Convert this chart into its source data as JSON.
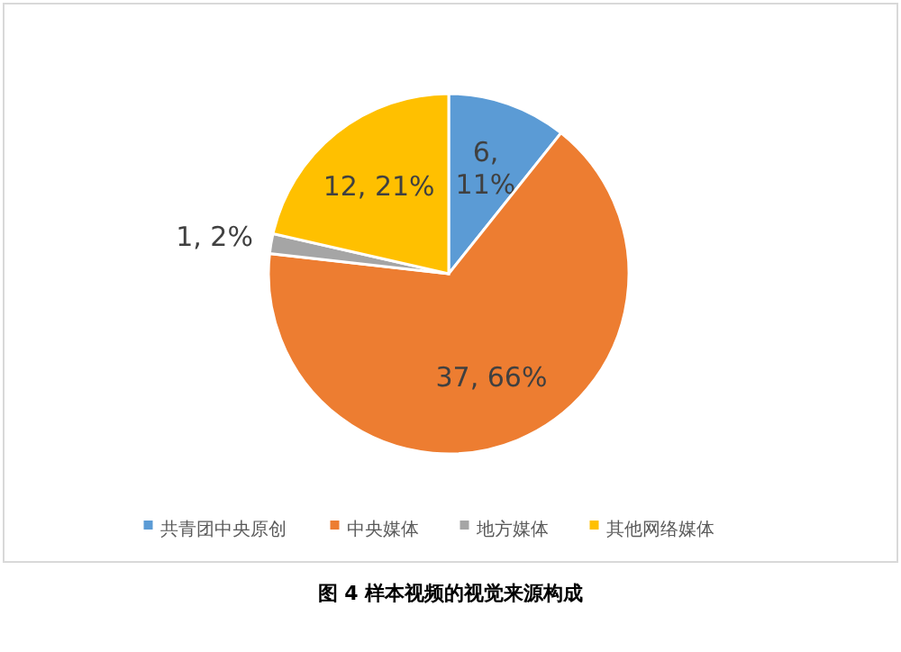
{
  "chart_data": {
    "type": "pie",
    "categories": [
      "共青团中央原创",
      "中央媒体",
      "地方媒体",
      "其他网络媒体"
    ],
    "values": [
      6,
      37,
      1,
      12
    ],
    "colors": [
      "#5b9bd5",
      "#ed7d31",
      "#a5a5a5",
      "#ffc000"
    ],
    "value_labels": [
      "6, 11%",
      "37, 66%",
      "1, 2%",
      "12, 21%"
    ],
    "legend": "bottom",
    "annotations": [
      "图 4 样本视频的视觉来源构成"
    ]
  }
}
